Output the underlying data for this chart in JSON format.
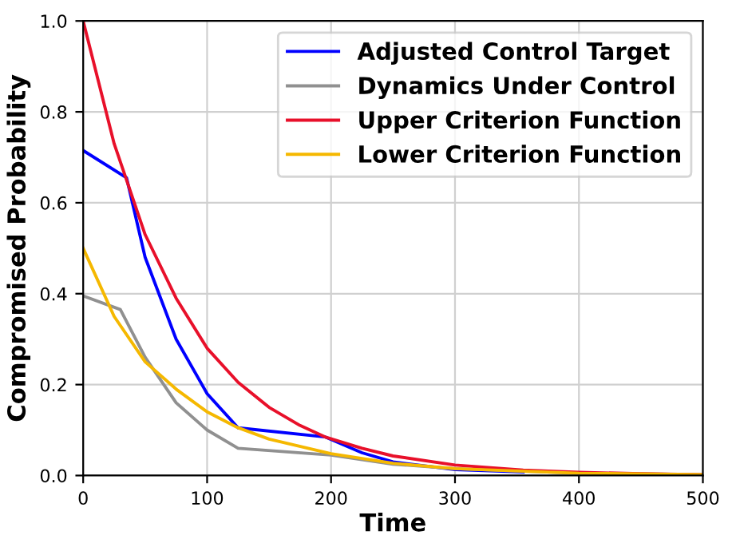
{
  "chart_data": {
    "type": "line",
    "xlabel": "Time",
    "ylabel": "Compromised Probability",
    "xlim": [
      0,
      500
    ],
    "ylim": [
      0,
      1.0
    ],
    "xticks": [
      0,
      100,
      200,
      300,
      400,
      500
    ],
    "yticks": [
      {
        "value": 0,
        "label": "0.0"
      },
      0.2,
      0.4,
      0.6,
      0.8,
      {
        "value": 1.0,
        "label": "1.0"
      }
    ],
    "grid": true,
    "legend": "top right",
    "line_style": "solid",
    "series": [
      {
        "name": "Adjusted Control Target",
        "color": "#0000ff",
        "x": [
          0,
          35,
          50,
          75,
          100,
          125,
          195,
          225,
          250,
          300,
          355
        ],
        "values": [
          0.715,
          0.655,
          0.48,
          0.3,
          0.18,
          0.105,
          0.085,
          0.05,
          0.03,
          0.013,
          0.008
        ]
      },
      {
        "name": "Dynamics Under Control",
        "color": "#909090",
        "x": [
          0,
          30,
          50,
          75,
          100,
          125,
          200,
          250,
          300,
          400,
          500
        ],
        "values": [
          0.395,
          0.365,
          0.26,
          0.16,
          0.1,
          0.06,
          0.045,
          0.025,
          0.015,
          0.005,
          0.002
        ]
      },
      {
        "name": "Upper Criterion Function",
        "color": "#e8102a",
        "x": [
          0,
          25,
          35,
          50,
          75,
          100,
          125,
          150,
          175,
          195,
          225,
          250,
          300,
          355,
          400,
          450,
          500
        ],
        "values": [
          1.0,
          0.73,
          0.65,
          0.53,
          0.39,
          0.28,
          0.205,
          0.15,
          0.11,
          0.085,
          0.06,
          0.043,
          0.023,
          0.012,
          0.007,
          0.004,
          0.002
        ]
      },
      {
        "name": "Lower Criterion Function",
        "color": "#f5b800",
        "x": [
          0,
          25,
          50,
          75,
          100,
          125,
          150,
          200,
          250,
          300,
          400,
          500
        ],
        "values": [
          0.5,
          0.35,
          0.25,
          0.19,
          0.14,
          0.105,
          0.08,
          0.048,
          0.027,
          0.015,
          0.005,
          0.002
        ]
      }
    ]
  }
}
